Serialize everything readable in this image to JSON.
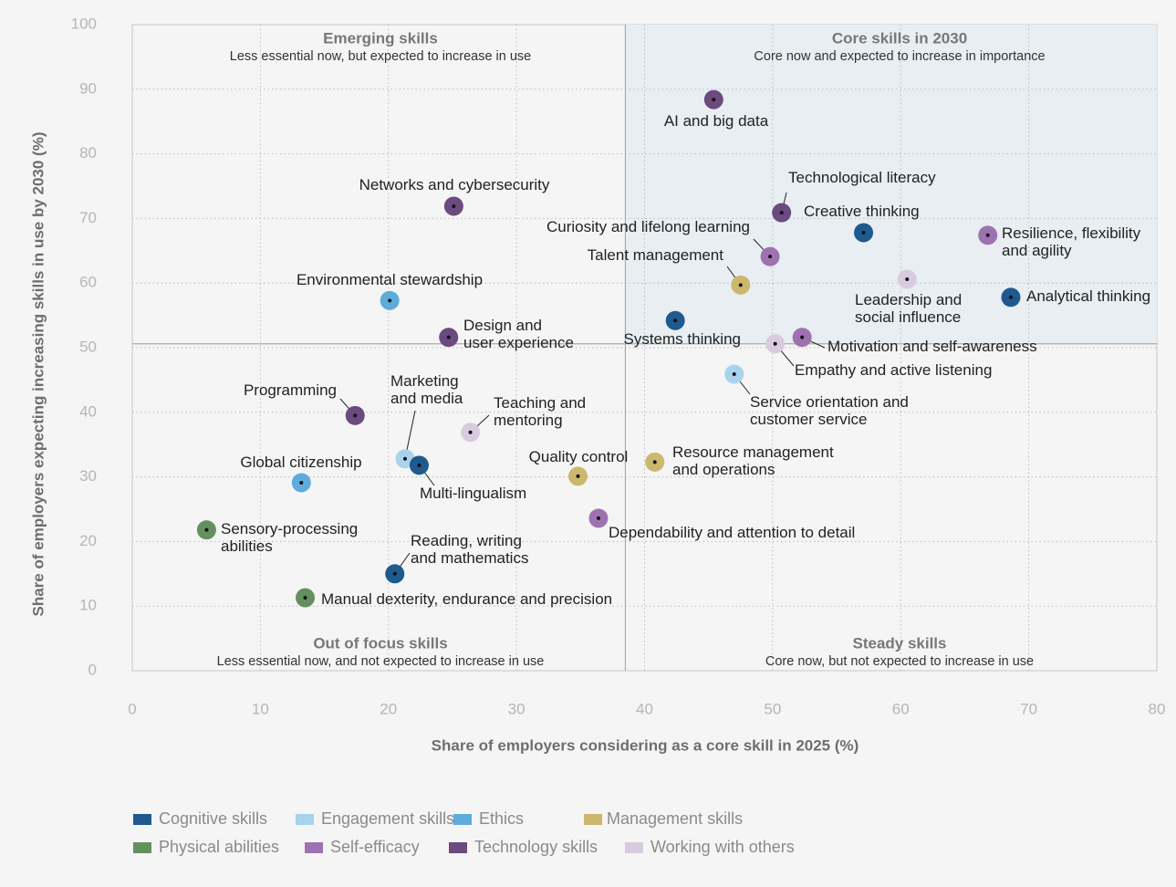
{
  "chart_data": {
    "type": "scatter",
    "xlabel": "Share of employers considering as a core skill in 2025 (%)",
    "ylabel": "Share of employers expecting increasing skills in use by 2030 (%)",
    "xlim": [
      0,
      80
    ],
    "ylim": [
      0,
      100
    ],
    "xticks": [
      "0",
      "10",
      "20",
      "30",
      "40",
      "50",
      "60",
      "70",
      "80"
    ],
    "yticks": [
      "0",
      "10",
      "20",
      "30",
      "40",
      "50",
      "60",
      "70",
      "80",
      "90",
      "100"
    ],
    "grid": "dotted",
    "legend_position": "bottom-left",
    "quadrant_divider": {
      "x": 38.5,
      "y": 50.6
    },
    "quadrants": [
      {
        "title": "Emerging skills",
        "subtitle": "Less essential now, but expected to increase in use"
      },
      {
        "title": "Core skills in 2030",
        "subtitle": "Core now and expected to increase in importance"
      },
      {
        "title": "Out of focus skills",
        "subtitle": "Less essential now, and not expected to increase in use"
      },
      {
        "title": "Steady skills",
        "subtitle": "Core now, but not expected to increase in use"
      }
    ],
    "categories": [
      {
        "name": "Cognitive skills",
        "color": "#1f5a8e"
      },
      {
        "name": "Engagement skills",
        "color": "#a8d3ec"
      },
      {
        "name": "Ethics",
        "color": "#5eacdc"
      },
      {
        "name": "Management skills",
        "color": "#cbb86d"
      },
      {
        "name": "Physical abilities",
        "color": "#64905f"
      },
      {
        "name": "Self-efficacy",
        "color": "#9e72b0"
      },
      {
        "name": "Technology skills",
        "color": "#6b4a80"
      },
      {
        "name": "Working with others",
        "color": "#d9cbdf"
      }
    ],
    "points": [
      {
        "label": "AI and big data",
        "x": 45.4,
        "y": 88.4,
        "category": "Technology skills"
      },
      {
        "label": "Networks and cybersecurity",
        "x": 25.1,
        "y": 71.9,
        "category": "Technology skills"
      },
      {
        "label": "Technological literacy",
        "x": 50.7,
        "y": 70.9,
        "category": "Technology skills"
      },
      {
        "label": "Creative thinking",
        "x": 57.1,
        "y": 67.8,
        "category": "Cognitive skills"
      },
      {
        "label": "Resilience, flexibility\nand agility",
        "x": 66.8,
        "y": 67.4,
        "category": "Self-efficacy"
      },
      {
        "label": "Curiosity and lifelong learning",
        "x": 49.8,
        "y": 64.1,
        "category": "Self-efficacy"
      },
      {
        "label": "Talent management",
        "x": 47.5,
        "y": 59.7,
        "category": "Management skills"
      },
      {
        "label": "Leadership and\nsocial influence",
        "x": 60.5,
        "y": 60.6,
        "category": "Working with others"
      },
      {
        "label": "Analytical thinking",
        "x": 68.6,
        "y": 57.8,
        "category": "Cognitive skills"
      },
      {
        "label": "Environmental stewardship",
        "x": 20.1,
        "y": 57.3,
        "category": "Ethics"
      },
      {
        "label": "Systems thinking",
        "x": 42.4,
        "y": 54.2,
        "category": "Cognitive skills"
      },
      {
        "label": "Design and\nuser experience",
        "x": 24.7,
        "y": 51.6,
        "category": "Technology skills"
      },
      {
        "label": "Empathy and active listening",
        "x": 50.2,
        "y": 50.6,
        "category": "Working with others"
      },
      {
        "label": "Motivation and self-awareness",
        "x": 52.3,
        "y": 51.6,
        "category": "Self-efficacy"
      },
      {
        "label": "Service orientation and\ncustomer service",
        "x": 47.0,
        "y": 45.9,
        "category": "Engagement skills"
      },
      {
        "label": "Programming",
        "x": 17.4,
        "y": 39.5,
        "category": "Technology skills"
      },
      {
        "label": "Teaching and\nmentoring",
        "x": 26.4,
        "y": 36.9,
        "category": "Working with others"
      },
      {
        "label": "Marketing\nand media",
        "x": 21.3,
        "y": 32.8,
        "category": "Engagement skills"
      },
      {
        "label": "Multi-lingualism",
        "x": 22.4,
        "y": 31.8,
        "category": "Cognitive skills"
      },
      {
        "label": "Global citizenship",
        "x": 13.2,
        "y": 29.1,
        "category": "Ethics"
      },
      {
        "label": "Quality control",
        "x": 34.8,
        "y": 30.1,
        "category": "Management skills"
      },
      {
        "label": "Resource management\nand operations",
        "x": 40.8,
        "y": 32.3,
        "category": "Management skills"
      },
      {
        "label": "Dependability and attention to detail",
        "x": 36.4,
        "y": 23.6,
        "category": "Self-efficacy"
      },
      {
        "label": "Sensory-processing\nabilities",
        "x": 5.8,
        "y": 21.8,
        "category": "Physical abilities"
      },
      {
        "label": "Reading, writing\nand mathematics",
        "x": 20.5,
        "y": 15.0,
        "category": "Cognitive skills"
      },
      {
        "label": "Manual dexterity, endurance and precision",
        "x": 13.5,
        "y": 11.3,
        "category": "Physical abilities"
      }
    ]
  }
}
